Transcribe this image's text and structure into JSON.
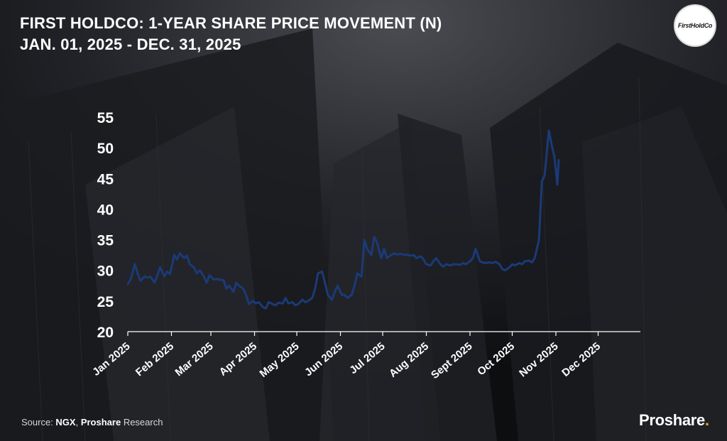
{
  "header": {
    "title_line1": "FIRST HOLDCO: 1-YEAR SHARE PRICE MOVEMENT (N)",
    "title_line2": "JAN. 01, 2025 - DEC. 31, 2025"
  },
  "logo_text": "FirstHoldCo",
  "footer": {
    "source_label": "Source: ",
    "source_1": "NGX",
    "source_sep": ", ",
    "source_2": "Proshare",
    "source_tail": " Research",
    "brand_name": "Proshare",
    "brand_dot": "."
  },
  "colors": {
    "background": "#111214",
    "line": "#1b3a78",
    "brand_accent": "#f5a623"
  },
  "chart_data": {
    "type": "line",
    "title": "FIRST HOLDCO: 1-YEAR SHARE PRICE MOVEMENT (N)",
    "subtitle": "JAN. 01, 2025 - DEC. 31, 2025",
    "xlabel": "",
    "ylabel": "",
    "ylim": [
      20,
      55
    ],
    "yticks": [
      20,
      25,
      30,
      35,
      40,
      45,
      50,
      55
    ],
    "x_range": [
      "2025-01-01",
      "2025-12-31"
    ],
    "xtick_labels": [
      "Jan 2025",
      "Feb 2025",
      "Mar 2025",
      "Apr 2025",
      "May 2025",
      "Jun 2025",
      "Jul 2025",
      "Aug 2025",
      "Sept 2025",
      "Oct 2025",
      "Nov 2025",
      "Dec 2025"
    ],
    "xtick_dates": [
      "2025-01-01",
      "2025-02-01",
      "2025-03-01",
      "2025-04-01",
      "2025-05-01",
      "2025-06-01",
      "2025-07-01",
      "2025-08-01",
      "2025-09-01",
      "2025-10-01",
      "2025-11-01",
      "2025-12-01"
    ],
    "grid": false,
    "legend": "none",
    "series": [
      {
        "points": [
          [
            "2025-01-01",
            27.8
          ],
          [
            "2025-01-03",
            28.5
          ],
          [
            "2025-01-06",
            31.0
          ],
          [
            "2025-01-08",
            29.5
          ],
          [
            "2025-01-10",
            28.3
          ],
          [
            "2025-01-13",
            29.0
          ],
          [
            "2025-01-15",
            28.8
          ],
          [
            "2025-01-17",
            29.0
          ],
          [
            "2025-01-20",
            28.0
          ],
          [
            "2025-01-22",
            29.2
          ],
          [
            "2025-01-24",
            30.5
          ],
          [
            "2025-01-27",
            29.0
          ],
          [
            "2025-01-29",
            29.8
          ],
          [
            "2025-01-31",
            29.4
          ],
          [
            "2025-02-03",
            32.5
          ],
          [
            "2025-02-05",
            31.8
          ],
          [
            "2025-02-07",
            32.8
          ],
          [
            "2025-02-10",
            32.0
          ],
          [
            "2025-02-12",
            32.4
          ],
          [
            "2025-02-14",
            31.0
          ],
          [
            "2025-02-17",
            30.5
          ],
          [
            "2025-02-19",
            29.5
          ],
          [
            "2025-02-21",
            30.0
          ],
          [
            "2025-02-24",
            29.0
          ],
          [
            "2025-02-26",
            28.0
          ],
          [
            "2025-02-28",
            29.2
          ],
          [
            "2025-03-03",
            28.5
          ],
          [
            "2025-03-05",
            28.6
          ],
          [
            "2025-03-07",
            28.5
          ],
          [
            "2025-03-10",
            28.4
          ],
          [
            "2025-03-12",
            27.0
          ],
          [
            "2025-03-14",
            27.5
          ],
          [
            "2025-03-17",
            26.5
          ],
          [
            "2025-03-19",
            28.0
          ],
          [
            "2025-03-21",
            27.5
          ],
          [
            "2025-03-24",
            27.0
          ],
          [
            "2025-03-26",
            26.0
          ],
          [
            "2025-03-28",
            24.5
          ],
          [
            "2025-03-31",
            25.0
          ],
          [
            "2025-04-02",
            24.6
          ],
          [
            "2025-04-04",
            24.8
          ],
          [
            "2025-04-07",
            24.0
          ],
          [
            "2025-04-09",
            23.8
          ],
          [
            "2025-04-11",
            24.8
          ],
          [
            "2025-04-14",
            24.5
          ],
          [
            "2025-04-16",
            24.3
          ],
          [
            "2025-04-18",
            24.7
          ],
          [
            "2025-04-21",
            24.6
          ],
          [
            "2025-04-23",
            25.5
          ],
          [
            "2025-04-25",
            24.6
          ],
          [
            "2025-04-28",
            24.8
          ],
          [
            "2025-04-30",
            24.3
          ],
          [
            "2025-05-02",
            24.5
          ],
          [
            "2025-05-05",
            25.2
          ],
          [
            "2025-05-07",
            24.8
          ],
          [
            "2025-05-09",
            25.0
          ],
          [
            "2025-05-12",
            25.5
          ],
          [
            "2025-05-14",
            27.0
          ],
          [
            "2025-05-16",
            29.5
          ],
          [
            "2025-05-19",
            29.8
          ],
          [
            "2025-05-21",
            28.0
          ],
          [
            "2025-05-23",
            26.0
          ],
          [
            "2025-05-26",
            25.2
          ],
          [
            "2025-05-28",
            26.5
          ],
          [
            "2025-05-30",
            27.5
          ],
          [
            "2025-06-02",
            26.0
          ],
          [
            "2025-06-04",
            26.0
          ],
          [
            "2025-06-06",
            25.5
          ],
          [
            "2025-06-09",
            26.0
          ],
          [
            "2025-06-11",
            27.5
          ],
          [
            "2025-06-13",
            29.5
          ],
          [
            "2025-06-16",
            29.0
          ],
          [
            "2025-06-18",
            35.0
          ],
          [
            "2025-06-20",
            33.5
          ],
          [
            "2025-06-23",
            32.5
          ],
          [
            "2025-06-25",
            35.5
          ],
          [
            "2025-06-27",
            34.5
          ],
          [
            "2025-06-30",
            32.0
          ],
          [
            "2025-07-02",
            33.5
          ],
          [
            "2025-07-04",
            32.0
          ],
          [
            "2025-07-07",
            32.5
          ],
          [
            "2025-07-09",
            32.8
          ],
          [
            "2025-07-11",
            32.6
          ],
          [
            "2025-07-14",
            32.7
          ],
          [
            "2025-07-16",
            32.5
          ],
          [
            "2025-07-18",
            32.6
          ],
          [
            "2025-07-21",
            32.4
          ],
          [
            "2025-07-23",
            32.5
          ],
          [
            "2025-07-25",
            32.0
          ],
          [
            "2025-07-28",
            32.3
          ],
          [
            "2025-07-30",
            31.8
          ],
          [
            "2025-08-01",
            31.0
          ],
          [
            "2025-08-04",
            30.8
          ],
          [
            "2025-08-06",
            31.5
          ],
          [
            "2025-08-08",
            32.0
          ],
          [
            "2025-08-11",
            31.0
          ],
          [
            "2025-08-13",
            30.6
          ],
          [
            "2025-08-15",
            31.0
          ],
          [
            "2025-08-18",
            30.8
          ],
          [
            "2025-08-20",
            31.0
          ],
          [
            "2025-08-22",
            31.0
          ],
          [
            "2025-08-25",
            30.9
          ],
          [
            "2025-08-27",
            31.2
          ],
          [
            "2025-08-29",
            31.0
          ],
          [
            "2025-09-01",
            31.5
          ],
          [
            "2025-09-03",
            32.0
          ],
          [
            "2025-09-05",
            33.5
          ],
          [
            "2025-09-08",
            31.5
          ],
          [
            "2025-09-10",
            31.3
          ],
          [
            "2025-09-12",
            31.2
          ],
          [
            "2025-09-15",
            31.3
          ],
          [
            "2025-09-17",
            31.2
          ],
          [
            "2025-09-19",
            31.4
          ],
          [
            "2025-09-22",
            31.0
          ],
          [
            "2025-09-24",
            30.2
          ],
          [
            "2025-09-26",
            30.0
          ],
          [
            "2025-09-29",
            30.5
          ],
          [
            "2025-10-01",
            31.0
          ],
          [
            "2025-10-03",
            30.8
          ],
          [
            "2025-10-06",
            31.2
          ],
          [
            "2025-10-08",
            31.0
          ],
          [
            "2025-10-10",
            31.5
          ],
          [
            "2025-10-13",
            31.6
          ],
          [
            "2025-10-15",
            31.3
          ],
          [
            "2025-10-17",
            32.0
          ],
          [
            "2025-10-20",
            35.0
          ],
          [
            "2025-10-22",
            44.5
          ],
          [
            "2025-10-24",
            45.5
          ],
          [
            "2025-10-27",
            52.8
          ],
          [
            "2025-10-29",
            50.5
          ],
          [
            "2025-10-31",
            48.5
          ],
          [
            "2025-11-02",
            44.0
          ],
          [
            "2025-11-03",
            48.0
          ]
        ]
      }
    ]
  }
}
